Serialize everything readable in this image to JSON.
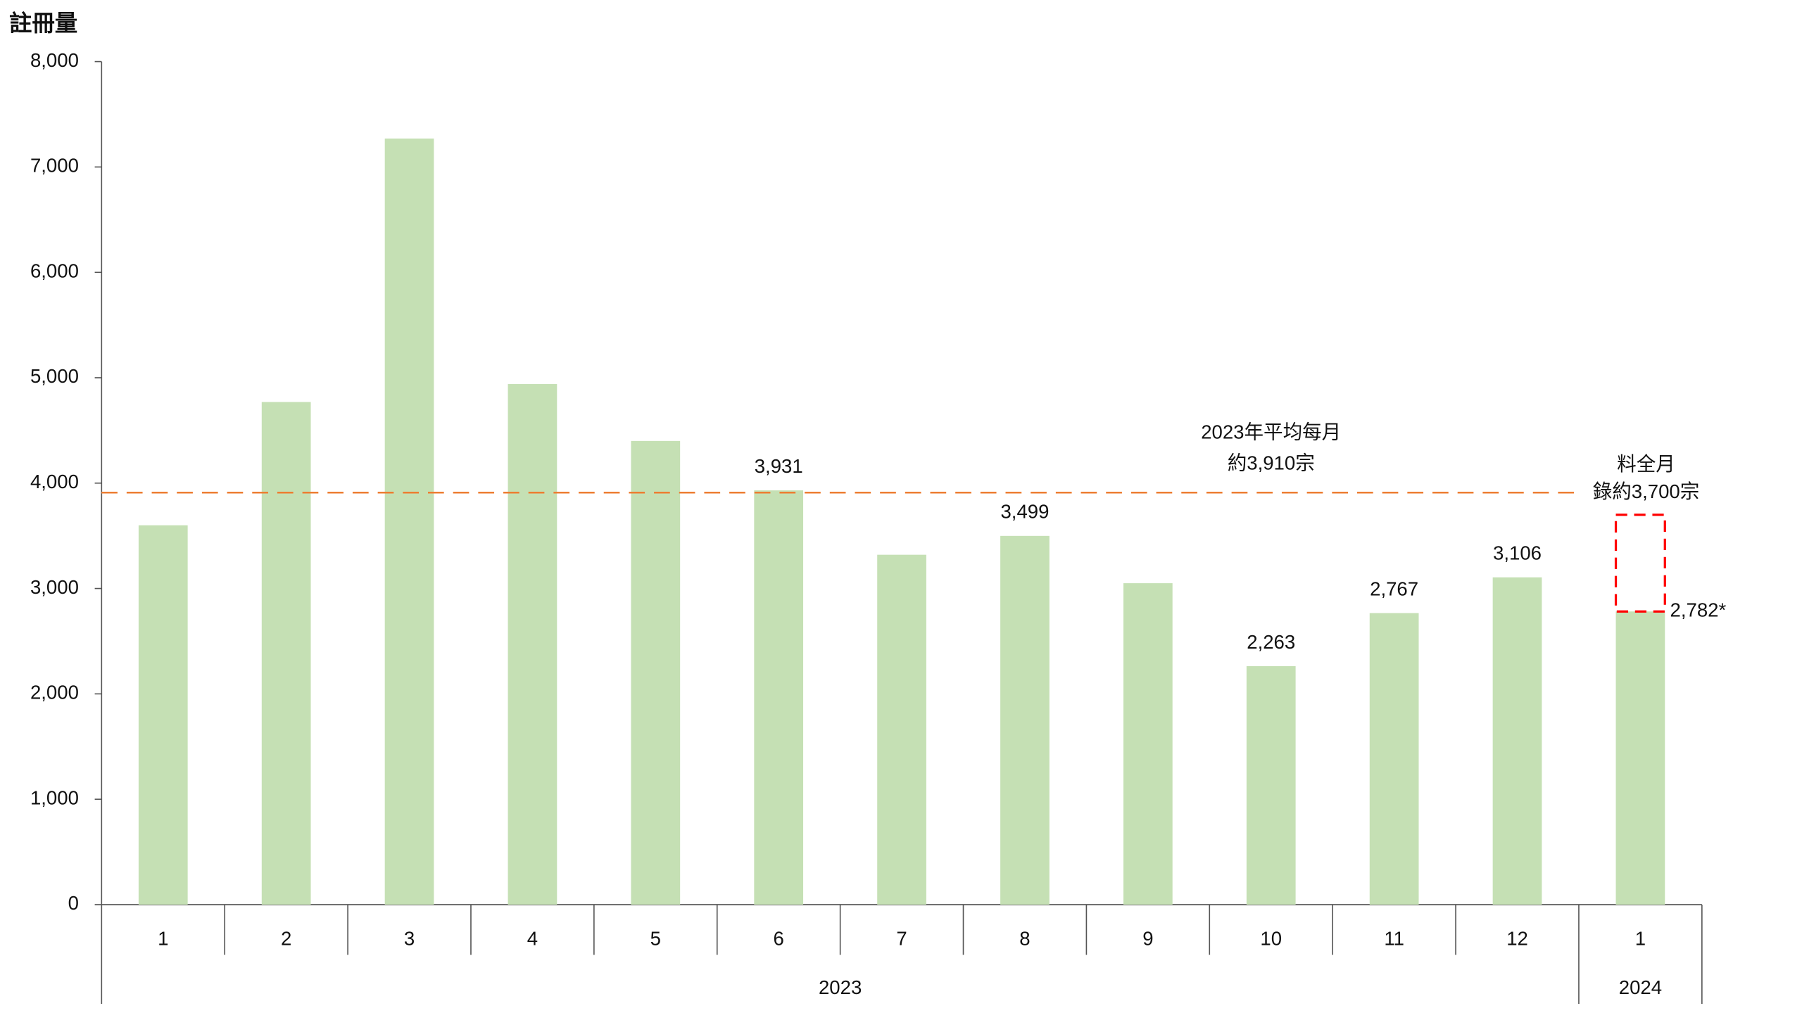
{
  "chart_data": {
    "type": "bar",
    "y_label": "註冊量",
    "groups": [
      {
        "name": "2023",
        "categories": [
          "1",
          "2",
          "3",
          "4",
          "5",
          "6",
          "7",
          "8",
          "9",
          "10",
          "11",
          "12"
        ]
      },
      {
        "name": "2024",
        "categories": [
          "1"
        ]
      }
    ],
    "values": [
      3600,
      4770,
      7270,
      4940,
      4400,
      3931,
      3320,
      3499,
      3050,
      2263,
      2767,
      3106,
      2782
    ],
    "value_labels": [
      null,
      null,
      null,
      null,
      null,
      "3,931",
      null,
      "3,499",
      null,
      "2,263",
      "2,767",
      "3,106",
      "2,782*"
    ],
    "color": "#c5e0b4",
    "ylim": [
      0,
      8000
    ],
    "yticks": [
      0,
      {
        "value": 1000,
        "label": "1,000"
      },
      {
        "value": 2000,
        "label": "2,000"
      },
      {
        "value": 3000,
        "label": "3,000"
      },
      {
        "value": 4000,
        "label": "4,000"
      },
      {
        "value": 5000,
        "label": "5,000"
      },
      {
        "value": 6000,
        "label": "6,000"
      },
      {
        "value": 7000,
        "label": "7,000"
      },
      {
        "value": 8000,
        "label": "8,000"
      }
    ],
    "reference_line": {
      "value": 3910,
      "color": "#ed7d31",
      "text_color": "#ff0000",
      "label": [
        "2023年平均每月",
        "約3,910宗"
      ]
    },
    "projection_box": {
      "to": 3700,
      "color": "#ff0000",
      "label": [
        "料全月",
        "錄約3,700宗"
      ]
    }
  }
}
